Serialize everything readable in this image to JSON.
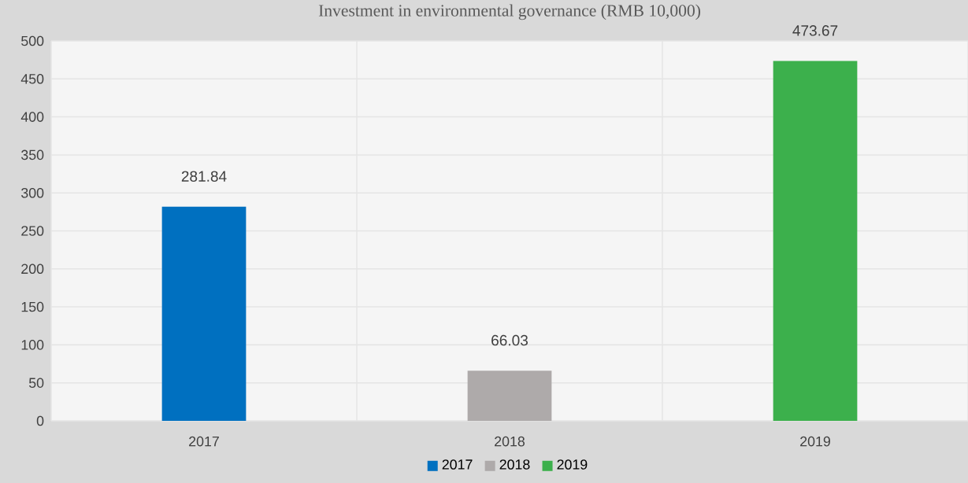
{
  "chart_data": {
    "type": "bar",
    "title": "Investment in environmental governance (RMB 10,000)",
    "categories": [
      "2017",
      "2018",
      "2019"
    ],
    "series": [
      {
        "name": "2017",
        "color": "#0070c0",
        "values": [
          281.84,
          null,
          null
        ]
      },
      {
        "name": "2018",
        "color": "#aeaaaa",
        "values": [
          null,
          66.03,
          null
        ]
      },
      {
        "name": "2019",
        "color": "#3cb04c",
        "values": [
          null,
          null,
          473.67
        ]
      }
    ],
    "ylim": [
      0,
      500
    ],
    "yticks": [
      0,
      50,
      100,
      150,
      200,
      250,
      300,
      350,
      400,
      450,
      500
    ],
    "grid": true,
    "legend": "bottom",
    "data_labels": true
  }
}
